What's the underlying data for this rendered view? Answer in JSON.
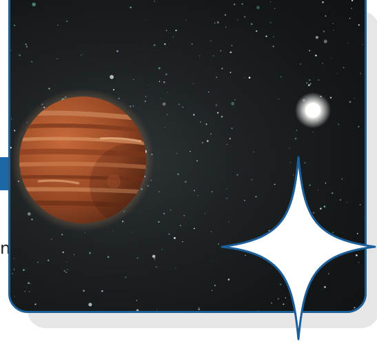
{
  "side_caption": "n",
  "colors": {
    "frame_border": "#1d5f99",
    "side_tab": "#1d67a6",
    "card_shadow": "#e6e6e6",
    "space_dark": "#141718",
    "planet_main": "#a4512c",
    "planet_band_light": "#c9794a",
    "sparkle_fill": "#ffffff",
    "sparkle_stroke": "#1d5f99"
  },
  "icons": {
    "planet": "gas-giant-planet-icon",
    "star": "bright-star-icon",
    "sparkle": "four-point-sparkle-icon"
  }
}
